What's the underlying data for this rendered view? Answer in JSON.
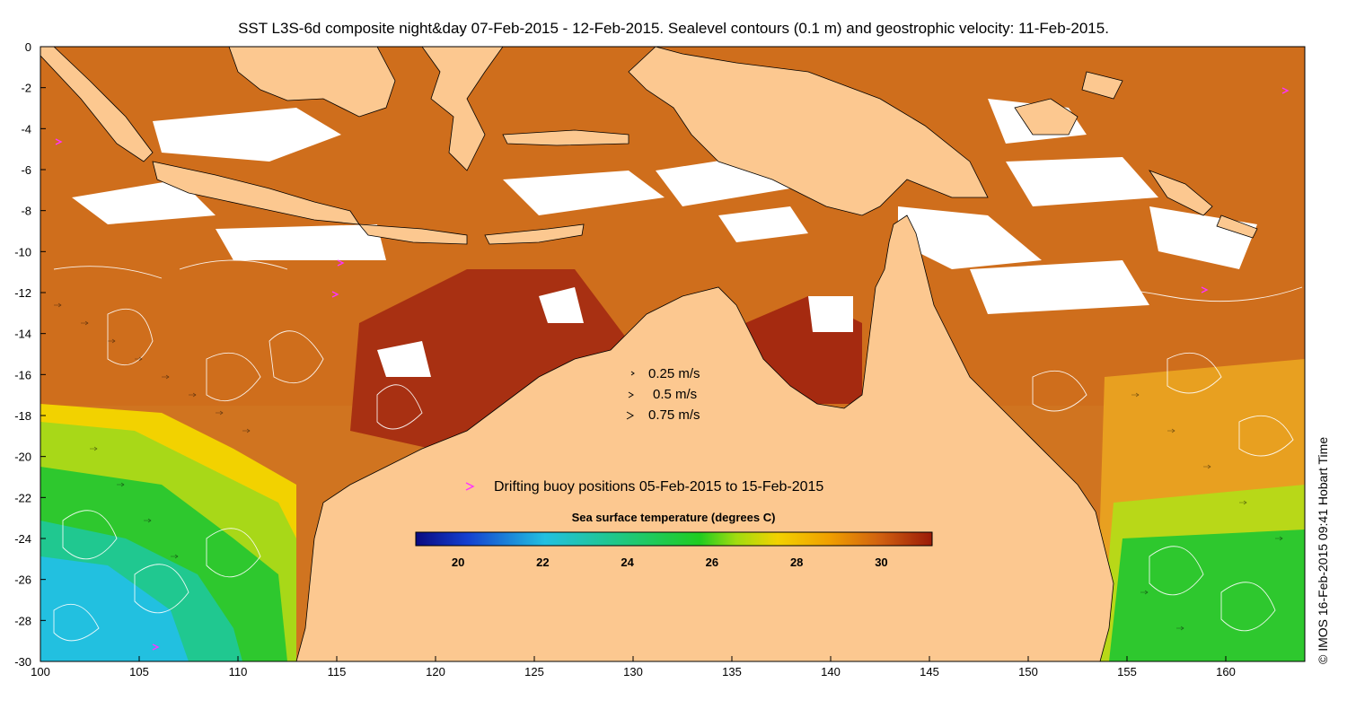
{
  "title": "SST L3S-6d composite night&day 07-Feb-2015 - 12-Feb-2015. Sealevel contours (0.1 m) and geostrophic velocity: 11-Feb-2015.",
  "credit": "© IMOS 16-Feb-2015 09:41 Hobart Time",
  "axes": {
    "x_ticks": [
      "100",
      "105",
      "110",
      "115",
      "120",
      "125",
      "130",
      "135",
      "140",
      "145",
      "150",
      "155",
      "160"
    ],
    "y_ticks": [
      "0",
      "-2",
      "-4",
      "-6",
      "-8",
      "-10",
      "-12",
      "-14",
      "-16",
      "-18",
      "-20",
      "-22",
      "-24",
      "-26",
      "-28",
      "-30"
    ],
    "x_range": [
      100,
      164
    ],
    "y_range": [
      -30,
      0
    ]
  },
  "velocity_legend": [
    {
      "label": "0.25 m/s",
      "magnitude": 0.25
    },
    {
      "label": "0.5 m/s",
      "magnitude": 0.5
    },
    {
      "label": "0.75 m/s",
      "magnitude": 0.75
    }
  ],
  "buoy_legend": {
    "label": "Drifting buoy positions 05-Feb-2015 to 15-Feb-2015",
    "color": "#ff33ff"
  },
  "colorbar": {
    "title": "Sea surface temperature (degrees C)",
    "ticks": [
      "20",
      "22",
      "24",
      "26",
      "28",
      "30"
    ],
    "range": [
      19,
      31.2
    ]
  },
  "colors": {
    "land": "#fcc890",
    "cloud": "#ffffff",
    "sst_cool": "#22c0e0",
    "sst_green": "#2ec82e",
    "sst_yellow": "#f2d200",
    "sst_orange": "#e08a18",
    "sst_warm": "#c8601a",
    "sst_hot": "#a52a10"
  }
}
